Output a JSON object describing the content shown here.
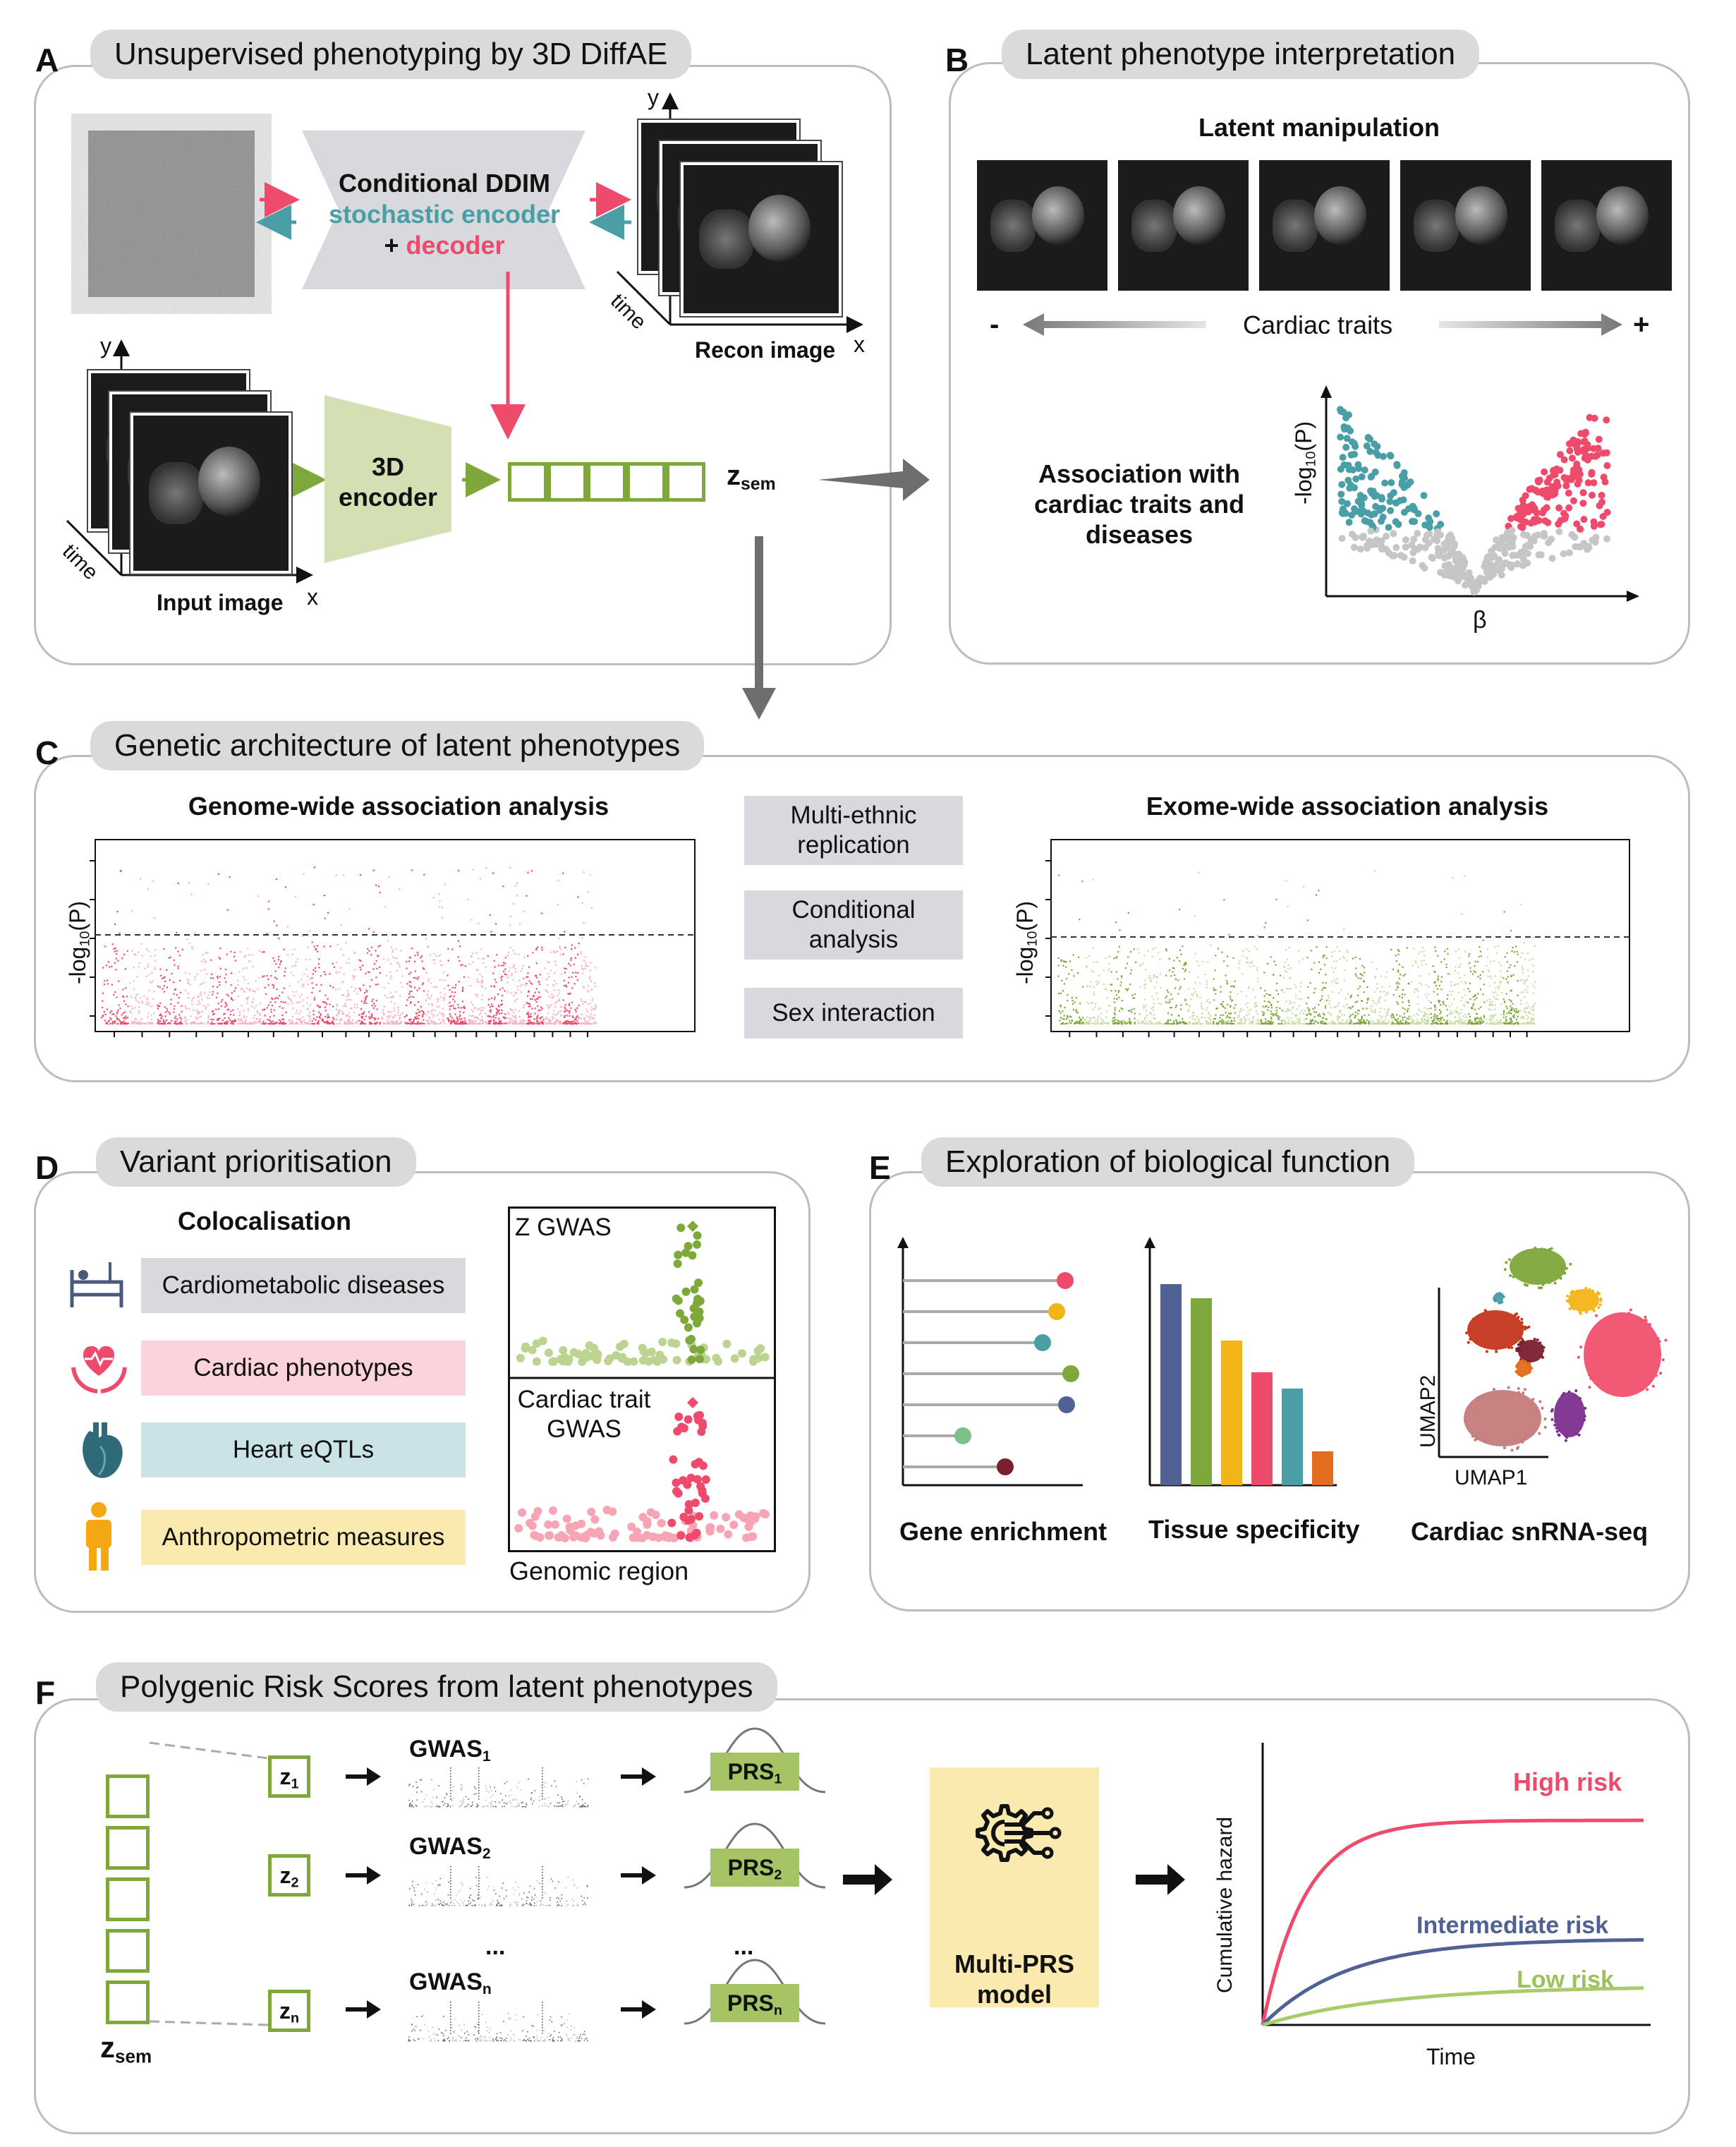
{
  "panelA": {
    "letter": "A",
    "title": "Unsupervised phenotyping by 3D DiffAE",
    "ddim_line1": "Conditional DDIM",
    "ddim_line2": "stochastic encoder",
    "ddim_plus": "+ ",
    "ddim_line3": "decoder",
    "encoder": "3D encoder",
    "zsem": "z",
    "zsem_sub": "sem",
    "recon": "Recon image",
    "input": "Input image",
    "axis_y": "y",
    "axis_x": "x",
    "axis_time": "time"
  },
  "panelB": {
    "letter": "B",
    "title": "Latent phenotype interpretation",
    "manip": "Latent manipulation",
    "minus": "-",
    "plus": "+",
    "traits": "Cardiac traits",
    "assoc": "Association with cardiac traits and diseases",
    "ylabel": "-log10(P)",
    "xlabel": "β"
  },
  "panelC": {
    "letter": "C",
    "title": "Genetic architecture of latent phenotypes",
    "gwas": "Genome-wide association analysis",
    "exwas": "Exome-wide association analysis",
    "box1": "Multi-ethnic replication",
    "box2": "Conditional analysis",
    "box3": "Sex interaction",
    "ylabel": "-log10(P)"
  },
  "panelD": {
    "letter": "D",
    "title": "Variant prioritisation",
    "coloc": "Colocalisation",
    "items": [
      "Cardiometabolic diseases",
      "Cardiac phenotypes",
      "Heart eQTLs",
      "Anthropometric measures"
    ],
    "zgwas": "Z GWAS",
    "cardiac_gwas": "Cardiac trait GWAS",
    "region": "Genomic region"
  },
  "panelE": {
    "letter": "E",
    "title": "Exploration of biological function",
    "gene": "Gene enrichment",
    "tissue": "Tissue specificity",
    "snrna": "Cardiac snRNA-seq",
    "umap1": "UMAP1",
    "umap2": "UMAP2"
  },
  "panelF": {
    "letter": "F",
    "title": "Polygenic Risk Scores from latent phenotypes",
    "z": "z",
    "subs": [
      "1",
      "2",
      "n"
    ],
    "gwas": "GWAS",
    "prs": "PRS",
    "dots": "...",
    "zsem": "z",
    "zsem_sub": "sem",
    "model": "Multi-PRS model",
    "high": "High risk",
    "inter": "Intermediate risk",
    "low": "Low risk",
    "ylabel": "Cumulative hazard",
    "xlabel": "Time"
  },
  "colors": {
    "pink": "#ee4a6c",
    "teal": "#4a9ea6",
    "green": "#7ea83a",
    "grey": "#d7d9dc",
    "yellow": "#fbeab0"
  }
}
